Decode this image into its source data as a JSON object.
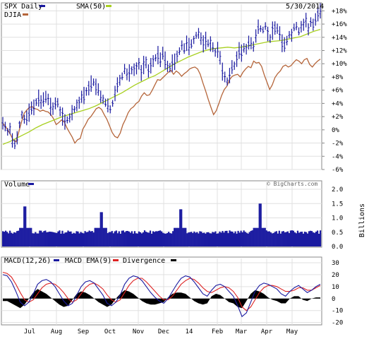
{
  "chart_data": [
    {
      "type": "ohlc",
      "panel": "price",
      "legend": [
        {
          "label": "SPX Daily",
          "color": "#1a1aa0"
        },
        {
          "label": "SMA(50)",
          "color": "#a8d020"
        },
        {
          "label": "DJIA",
          "color": "#b5653a"
        }
      ],
      "date_label": "5/30/2014",
      "y_axis": {
        "unit": "%",
        "ticks": [
          "+18%",
          "+16%",
          "+14%",
          "+12%",
          "+10%",
          "+8%",
          "+6%",
          "+4%",
          "+2%",
          "0%",
          "-2%",
          "-4%",
          "-6%"
        ],
        "range": [
          -6,
          19
        ]
      },
      "series": [
        {
          "name": "SPX Daily",
          "values": [
            1,
            0.5,
            -0.3,
            0.2,
            -1.6,
            -2.2,
            -1.2,
            0.8,
            2.3,
            1.6,
            1.8,
            2.6,
            3.3,
            3.4,
            4.2,
            4.8,
            4.2,
            4.6,
            5.0,
            4.6,
            3.5,
            3.2,
            4.0,
            4.1,
            2.8,
            2.0,
            1.2,
            1.5,
            1.8,
            2.6,
            3.1,
            3.7,
            4.1,
            5.0,
            5.2,
            5.8,
            6.3,
            7.0,
            7.2,
            6.5,
            6.1,
            5.0,
            4.6,
            4.1,
            3.7,
            3.1,
            4.0,
            5.5,
            6.8,
            7.5,
            8.1,
            9.2,
            8.4,
            8.6,
            9.0,
            9.1,
            9.3,
            10.0,
            8.6,
            9.8,
            10.2,
            8.9,
            9.7,
            10.4,
            10.9,
            11.3,
            10.6,
            11.6,
            10.5,
            9.6,
            9.4,
            10.1,
            10.3,
            11.1,
            11.9,
            12.8,
            12.3,
            13.1,
            12.6,
            13.0,
            13.6,
            14.3,
            14.6,
            13.8,
            13.0,
            13.5,
            13.1,
            13.0,
            12.5,
            11.7,
            12.1,
            10.9,
            8.8,
            8.0,
            7.3,
            8.2,
            9.5,
            9.7,
            10.7,
            12.0,
            11.6,
            12.4,
            12.2,
            13.2,
            13.1,
            12.6,
            14.2,
            15.6,
            15.3,
            15.1,
            15.7,
            14.5,
            13.8,
            15.0,
            15.4,
            15.3,
            14.6,
            13.1,
            12.9,
            13.5,
            14.4,
            14.3,
            15.5,
            15.7,
            14.9,
            15.6,
            15.9,
            16.6,
            15.2,
            16.3,
            15.9,
            16.7,
            17.6,
            18.0
          ]
        },
        {
          "name": "SMA(50)",
          "values": [
            -2.2,
            -1.8,
            -1.3,
            -0.8,
            -0.3,
            0.3,
            0.8,
            1.2,
            1.6,
            2.0,
            2.3,
            2.6,
            2.9,
            3.2,
            3.6,
            4.1,
            4.6,
            5.1,
            5.6,
            6.2,
            6.8,
            7.3,
            7.8,
            8.2,
            8.8,
            9.4,
            10.0,
            10.5,
            11.0,
            11.4,
            11.8,
            12.1,
            12.3,
            12.4,
            12.5,
            12.4,
            12.5,
            12.7,
            12.9,
            13.1,
            13.3,
            13.4,
            13.5,
            13.7,
            13.9,
            14.1,
            14.5,
            14.9,
            15.2
          ]
        },
        {
          "name": "DJIA",
          "values": [
            1,
            0.5,
            -0.1,
            -0.8,
            -1.6,
            -1.8,
            -0.3,
            1.2,
            2.5,
            3.0,
            3.4,
            3.5,
            3.2,
            3.1,
            2.8,
            3.0,
            2.8,
            2.7,
            2.3,
            1.7,
            0.8,
            1.1,
            1.5,
            1.2,
            0.3,
            -0.4,
            -1.1,
            -2.0,
            -1.5,
            -1.3,
            0.1,
            0.8,
            1.6,
            2.0,
            2.6,
            3.2,
            3.4,
            3.1,
            2.3,
            1.6,
            0.6,
            -0.4,
            -1.0,
            -1.2,
            -0.5,
            0.8,
            1.6,
            2.6,
            3.2,
            3.5,
            4.0,
            4.3,
            5.1,
            5.6,
            5.2,
            5.3,
            6.0,
            6.8,
            7.6,
            7.5,
            7.9,
            8.3,
            8.7,
            9.0,
            8.4,
            8.9,
            8.6,
            8.1,
            8.5,
            8.8,
            9.2,
            9.4,
            9.5,
            9.2,
            8.4,
            7.1,
            5.9,
            4.6,
            3.4,
            2.3,
            2.9,
            4.0,
            5.2,
            6.1,
            6.6,
            7.6,
            8.1,
            8.3,
            8.4,
            8.0,
            8.7,
            9.2,
            9.6,
            9.4,
            10.4,
            10.1,
            10.2,
            9.6,
            8.3,
            7.2,
            6.1,
            6.8,
            7.9,
            8.5,
            8.9,
            9.6,
            9.8,
            9.5,
            9.7,
            10.2,
            10.6,
            10.4,
            10.0,
            10.6,
            10.8,
            9.9,
            9.5,
            10.0,
            10.4,
            10.7
          ]
        }
      ]
    },
    {
      "type": "bar",
      "panel": "volume",
      "legend": [
        {
          "label": "Volume",
          "color": "#1a1aa0"
        }
      ],
      "watermark": "© BigCharts.com",
      "y_axis": {
        "label": "Billions",
        "ticks": [
          "2.0",
          "1.5",
          "1.0",
          "0.5",
          "0.0"
        ],
        "range": [
          0,
          2
        ]
      },
      "baseline": 0.5,
      "spikes": [
        {
          "at": 0.07,
          "value": 1.4
        },
        {
          "at": 0.31,
          "value": 1.2
        },
        {
          "at": 0.56,
          "value": 1.3
        },
        {
          "at": 0.81,
          "value": 1.5
        }
      ]
    },
    {
      "type": "line",
      "panel": "macd",
      "legend": [
        {
          "label": "MACD(12,26)",
          "color": "#1a1aa0"
        },
        {
          "label": "MACD EMA(9)",
          "color": "#dd2222"
        },
        {
          "label": "Divergence",
          "color": "#000000"
        }
      ],
      "y_axis": {
        "ticks": [
          "30",
          "20",
          "10",
          "0",
          "-10",
          "-20"
        ],
        "range": [
          -22,
          30
        ]
      },
      "series": [
        {
          "name": "MACD(12,26)",
          "values": [
            20,
            19,
            14,
            6,
            -3,
            -6,
            -3,
            4,
            12,
            15,
            16,
            14,
            10,
            4,
            -2,
            -6,
            -4,
            3,
            10,
            14,
            15,
            13,
            8,
            3,
            -4,
            -6,
            -3,
            3,
            12,
            17,
            19,
            18,
            15,
            10,
            5,
            1,
            -2,
            -4,
            0,
            6,
            12,
            17,
            19,
            18,
            14,
            9,
            4,
            2,
            7,
            11,
            12,
            10,
            6,
            2,
            -6,
            -15,
            -12,
            -3,
            6,
            11,
            13,
            12,
            10,
            8,
            4,
            2,
            6,
            9,
            11,
            8,
            5,
            7,
            10,
            12
          ]
        },
        {
          "name": "MACD EMA(9)",
          "values": [
            22,
            21,
            18,
            12,
            5,
            -1,
            -3,
            -1,
            4,
            9,
            12,
            13,
            12,
            9,
            5,
            0,
            -3,
            -1,
            4,
            9,
            12,
            13,
            11,
            8,
            3,
            -1,
            -3,
            -1,
            5,
            11,
            15,
            17,
            17,
            14,
            10,
            6,
            2,
            -1,
            -1,
            2,
            7,
            12,
            15,
            17,
            16,
            13,
            9,
            6,
            5,
            7,
            9,
            10,
            9,
            6,
            1,
            -7,
            -10,
            -7,
            -1,
            5,
            9,
            11,
            11,
            10,
            8,
            6,
            6,
            7,
            9,
            9,
            7,
            7,
            9,
            11
          ]
        },
        {
          "name": "Divergence",
          "values": [
            -2,
            -2,
            -4,
            -6,
            -8,
            -5,
            0,
            5,
            8,
            6,
            4,
            1,
            -2,
            -5,
            -7,
            -6,
            -1,
            4,
            6,
            5,
            3,
            0,
            -3,
            -5,
            -7,
            -5,
            0,
            4,
            7,
            6,
            4,
            1,
            -2,
            -4,
            -5,
            -5,
            -4,
            -3,
            1,
            4,
            5,
            5,
            4,
            1,
            -2,
            -4,
            -5,
            -4,
            2,
            4,
            3,
            0,
            -3,
            -4,
            -7,
            -8,
            -2,
            4,
            7,
            6,
            4,
            1,
            -1,
            -2,
            -4,
            -4,
            0,
            2,
            2,
            -1,
            -2,
            0,
            1,
            1
          ]
        }
      ]
    }
  ],
  "x_axis_labels": [
    "Jul",
    "Aug",
    "Sep",
    "Oct",
    "Nov",
    "Dec",
    "14",
    "Feb",
    "Mar",
    "Apr",
    "May"
  ]
}
